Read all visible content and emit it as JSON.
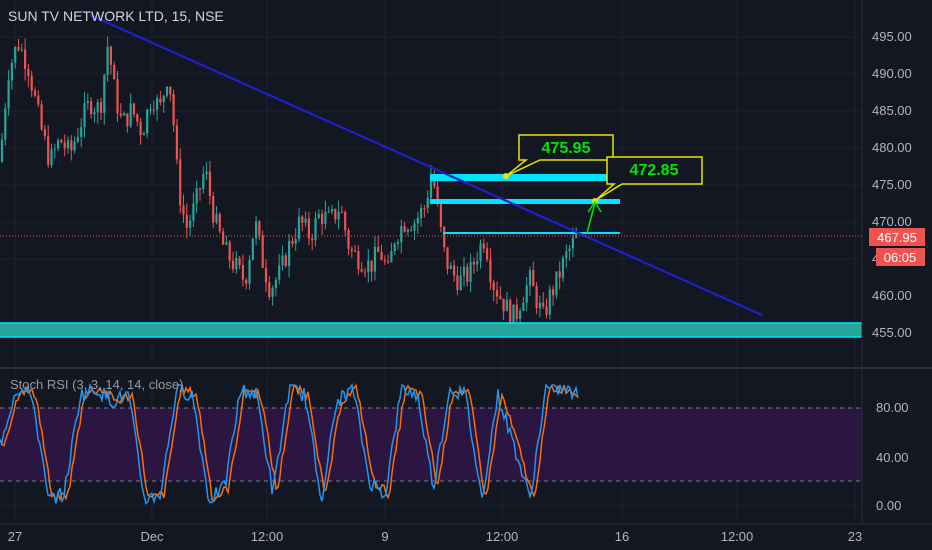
{
  "header": {
    "symbol_title": "SUN TV NETWORK LTD, 15, NSE"
  },
  "indicator": {
    "title": "Stoch RSI (3, 3, 14, 14, close)"
  },
  "price_axis": {
    "ticks": [
      "495.00",
      "490.00",
      "485.00",
      "480.00",
      "475.00",
      "470.00",
      "465.00",
      "460.00",
      "455.00"
    ],
    "current_price": "467.95",
    "countdown": "06:05"
  },
  "rsi_axis": {
    "ticks": [
      "80.00",
      "40.00",
      "0.00"
    ]
  },
  "time_axis": {
    "labels": [
      "27",
      "Dec",
      "12:00",
      "9",
      "12:00",
      "16",
      "12:00",
      "23"
    ]
  },
  "annotations": {
    "callout_1": "475.95",
    "callout_2": "472.85"
  },
  "colors": {
    "background": "#131722",
    "bull": "#26a69a",
    "bear": "#ef5350",
    "trendline": "#1f1fcf",
    "level": "#00e5ff",
    "callout_border": "#e6e600",
    "callout_text": "#00e600",
    "rsi_k": "#2196f3",
    "rsi_d": "#ff6d00",
    "rsi_band": "#2a1640"
  },
  "chart_data": {
    "type": "candlestick",
    "y_range": [
      453,
      499
    ],
    "close_path": [
      [
        0,
        478
      ],
      [
        8,
        490
      ],
      [
        18,
        494
      ],
      [
        28,
        491
      ],
      [
        40,
        483
      ],
      [
        50,
        478
      ],
      [
        60,
        481
      ],
      [
        70,
        479
      ],
      [
        80,
        483
      ],
      [
        90,
        486
      ],
      [
        100,
        485
      ],
      [
        108,
        494
      ],
      [
        115,
        487
      ],
      [
        122,
        483
      ],
      [
        132,
        485
      ],
      [
        142,
        482
      ],
      [
        152,
        487
      ],
      [
        160,
        485
      ],
      [
        168,
        490
      ],
      [
        172,
        486
      ],
      [
        178,
        475
      ],
      [
        186,
        469
      ],
      [
        195,
        472
      ],
      [
        205,
        477
      ],
      [
        215,
        470
      ],
      [
        225,
        466
      ],
      [
        235,
        464
      ],
      [
        245,
        462
      ],
      [
        255,
        470
      ],
      [
        262,
        465
      ],
      [
        270,
        461
      ],
      [
        280,
        463
      ],
      [
        290,
        467
      ],
      [
        300,
        470
      ],
      [
        310,
        468
      ],
      [
        320,
        471
      ],
      [
        330,
        470
      ],
      [
        340,
        472
      ],
      [
        350,
        466
      ],
      [
        360,
        465
      ],
      [
        370,
        464
      ],
      [
        380,
        466
      ],
      [
        388,
        463
      ],
      [
        395,
        468
      ],
      [
        405,
        470
      ],
      [
        415,
        470
      ],
      [
        425,
        472
      ],
      [
        432,
        477
      ],
      [
        438,
        471
      ],
      [
        445,
        465
      ],
      [
        452,
        463
      ],
      [
        460,
        462
      ],
      [
        470,
        463
      ],
      [
        478,
        466
      ],
      [
        485,
        468
      ],
      [
        492,
        462
      ],
      [
        500,
        460
      ],
      [
        508,
        458
      ],
      [
        515,
        457
      ],
      [
        522,
        460
      ],
      [
        530,
        462
      ],
      [
        538,
        459
      ],
      [
        543,
        457
      ],
      [
        550,
        460
      ],
      [
        557,
        462
      ],
      [
        565,
        465
      ],
      [
        573,
        467
      ],
      [
        578,
        468
      ]
    ],
    "levels": [
      455.3,
      476,
      472.7,
      467.9
    ],
    "callout_points": [
      475.95,
      472.85
    ],
    "trendline_pixels": "computed",
    "stoch_rsi_range": [
      0,
      100
    ],
    "stoch_rsi_bands": [
      80,
      20
    ],
    "stoch_rsi_k_shape": [
      50,
      95,
      90,
      5,
      10,
      90,
      95,
      85,
      90,
      5,
      10,
      95,
      90,
      5,
      15,
      95,
      90,
      10,
      95,
      90,
      5,
      85,
      95,
      20,
      10,
      95,
      90,
      15,
      95,
      90,
      5,
      90,
      50,
      5,
      95,
      95,
      90
    ]
  }
}
